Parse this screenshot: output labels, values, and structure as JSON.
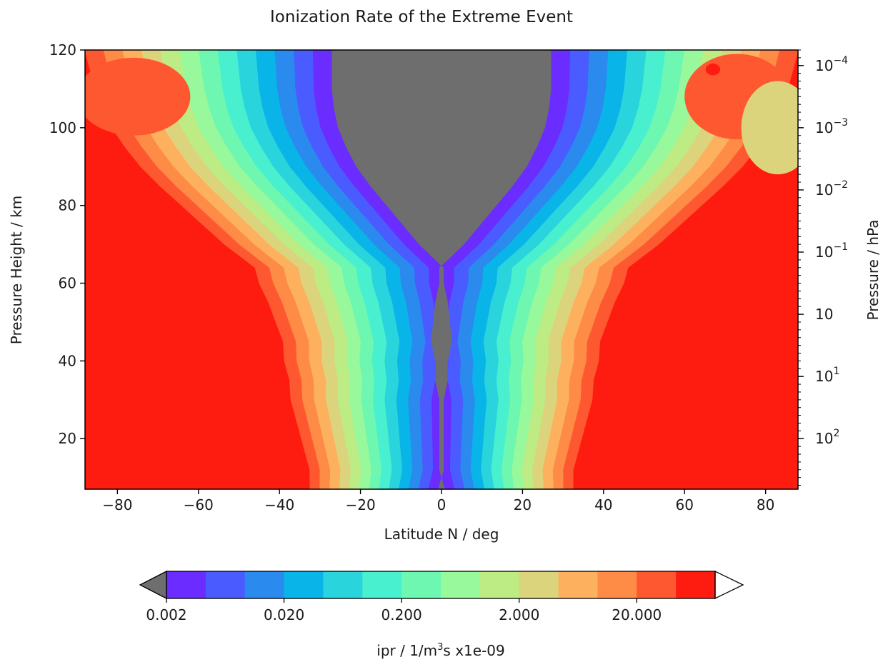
{
  "chart_data": {
    "type": "heatmap",
    "subtype": "filled-contour",
    "title": "Ionization Rate of the Extreme Event",
    "xlabel": "Latitude N / deg",
    "ylabel": "Pressure Height / km",
    "y2label": "Pressure / hPa",
    "xlim": [
      -88,
      88
    ],
    "ylim": [
      7,
      120
    ],
    "x_ticks": [
      -80,
      -60,
      -40,
      -20,
      0,
      20,
      40,
      60,
      80
    ],
    "x_tick_labels": [
      "−80",
      "−60",
      "−40",
      "−20",
      "0",
      "20",
      "40",
      "60",
      "80"
    ],
    "y_ticks": [
      20,
      40,
      60,
      80,
      100,
      120
    ],
    "y_tick_labels": [
      "20",
      "40",
      "60",
      "80",
      "100",
      "120"
    ],
    "y2_ticks": [
      {
        "height_km": 116,
        "base": "10",
        "exp": "−4"
      },
      {
        "height_km": 100,
        "base": "10",
        "exp": "−3"
      },
      {
        "height_km": 84,
        "base": "10",
        "exp": "−2"
      },
      {
        "height_km": 68,
        "base": "10",
        "exp": "−1"
      },
      {
        "height_km": 52,
        "base": "10",
        "exp": ""
      },
      {
        "height_km": 36,
        "base": "10",
        "exp": "1"
      },
      {
        "height_km": 20,
        "base": "10",
        "exp": "2"
      }
    ],
    "below_range_color": "#6e6e6e",
    "colorbar": {
      "label_prefix": "ipr / 1/m",
      "label_sup": "3",
      "label_suffix": "s x1e-09",
      "levels": 14,
      "colors": [
        "#6a2cff",
        "#4a5cff",
        "#2a8aee",
        "#08b4e8",
        "#2ad4dc",
        "#48f0cf",
        "#6df7b0",
        "#98f89c",
        "#bdeb84",
        "#dcd47c",
        "#fdb15e",
        "#fe8b46",
        "#fe5830",
        "#fe1c10"
      ],
      "under_color": "#6e6e6e",
      "over_color": "#ffffff",
      "tick_labels": [
        "0.002",
        "0.020",
        "0.200",
        "2.000",
        "20.000"
      ]
    }
  }
}
